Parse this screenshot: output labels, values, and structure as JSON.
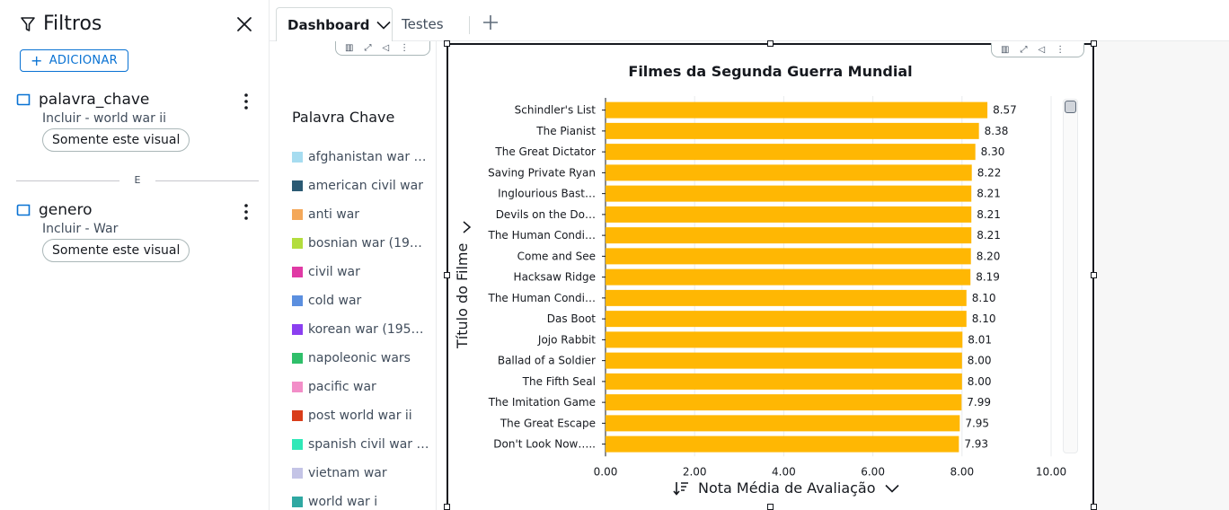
{
  "filters": {
    "title": "Filtros",
    "add_label": "ADICIONAR",
    "separator": "E",
    "items": [
      {
        "name": "palavra_chave",
        "condition": "Incluir - world war ii",
        "scope": "Somente este visual"
      },
      {
        "name": "genero",
        "condition": "Incluir - War",
        "scope": "Somente este visual"
      }
    ]
  },
  "tabs": {
    "active": "Dashboard",
    "inactive": "Testes"
  },
  "legend": {
    "title": "Palavra Chave",
    "items": [
      {
        "label": "afghanistan war …",
        "color": "#a6dcf0"
      },
      {
        "label": "american civil war",
        "color": "#2b5a73"
      },
      {
        "label": "anti war",
        "color": "#f4a85a"
      },
      {
        "label": "bosnian war (19…",
        "color": "#b3dd3e"
      },
      {
        "label": "civil war",
        "color": "#e03aa5"
      },
      {
        "label": "cold war",
        "color": "#5b8fdf"
      },
      {
        "label": "korean war (195…",
        "color": "#8b3ff0"
      },
      {
        "label": "napoleonic wars",
        "color": "#2fbf6a"
      },
      {
        "label": "pacific war",
        "color": "#f28ec8"
      },
      {
        "label": "post world war ii",
        "color": "#d93d1a"
      },
      {
        "label": "spanish civil war …",
        "color": "#30e8b8"
      },
      {
        "label": "vietnam war",
        "color": "#c4c4e6"
      },
      {
        "label": "world war i",
        "color": "#2fa8a2"
      }
    ]
  },
  "chart_data": {
    "type": "bar",
    "orientation": "horizontal",
    "title": "Filmes da Segunda Guerra Mundial",
    "ylabel": "Título do Filme",
    "xlabel": "Nota Média de Avaliação",
    "categories": [
      "Schindler's List",
      "The Pianist",
      "The Great Dictator",
      "Saving Private Ryan",
      "Inglourious Bast…",
      "Devils on the Do…",
      "The Human Condi…",
      "Come and See",
      "Hacksaw Ridge",
      "The Human Condi…",
      "Das Boot",
      "Jojo Rabbit",
      "Ballad of a Soldier",
      "The Fifth Seal",
      "The Imitation Game",
      "The Great Escape",
      "Don't Look Now….."
    ],
    "values": [
      8.57,
      8.38,
      8.3,
      8.22,
      8.21,
      8.21,
      8.21,
      8.2,
      8.19,
      8.1,
      8.1,
      8.01,
      8.0,
      8.0,
      7.99,
      7.95,
      7.93
    ],
    "value_labels": [
      "8.57",
      "8.38",
      "8.30",
      "8.22",
      "8.21",
      "8.21",
      "8.21",
      "8.20",
      "8.19",
      "8.10",
      "8.10",
      "8.01",
      "8.00",
      "8.00",
      "7.99",
      "7.95",
      "7.93"
    ],
    "xlim": [
      0,
      10
    ],
    "xticks": [
      "0.00",
      "2.00",
      "4.00",
      "6.00",
      "8.00",
      "10.00"
    ],
    "grid": true,
    "bar_color": "#ffb703"
  }
}
